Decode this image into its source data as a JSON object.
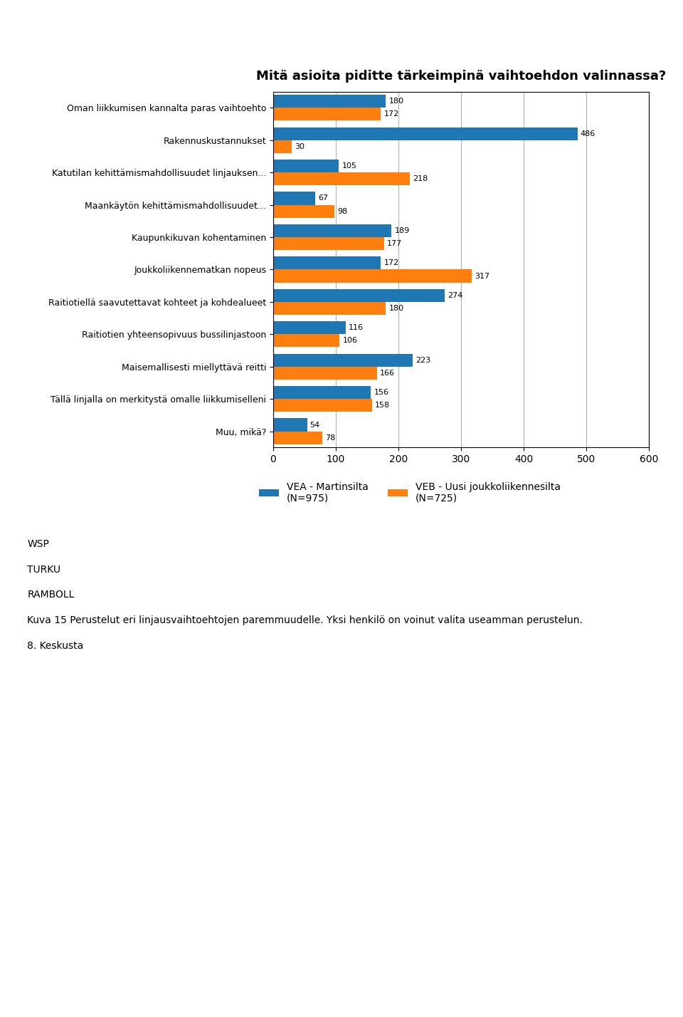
{
  "chart_data": {
    "type": "bar",
    "orientation": "horizontal",
    "title": "Mitä asioita piditte tärkeimpinä vaihtoehdon valinnassa?",
    "categories": [
      "Oman liikkumisen kannalta paras vaihtoehto",
      "Rakennuskustannukset",
      "Katutilan kehittämismahdollisuudet linjauksen...",
      "Maankäytön kehittämismahdollisuudet...",
      "Kaupunkikuvan kohentaminen",
      "Joukkoliikennematkan nopeus",
      "Raitiotiellä saavutettavat kohteet ja kohdealueet",
      "Raitiotien yhteensopivuus bussilinjastoon",
      "Maisemallisesti miellyttävä reitti",
      "Tällä linjalla on merkitystä omalle liikkumiselleni",
      "Muu, mikä?"
    ],
    "series": [
      {
        "name": "VEA - Martinsilta\n(N=975)",
        "values": [
          180,
          486,
          105,
          67,
          189,
          172,
          274,
          116,
          223,
          156,
          54
        ]
      },
      {
        "name": "VEB - Uusi joukkoliikennesilta\n(N=725)",
        "values": [
          172,
          30,
          218,
          98,
          177,
          317,
          180,
          106,
          166,
          158,
          78
        ]
      }
    ],
    "xlim": [
      0,
      600
    ],
    "xticks": [
      0,
      100,
      200,
      300,
      400,
      500,
      600
    ],
    "grid": true,
    "data_labels": true,
    "annotations": [
      "WSP",
      "TURKU",
      "RAMBOLL",
      "Kuva 15 Perustelut eri linjausvaihtoehtojen paremmuudelle. Yksi henkilö on voinut valita useamman perustelun.",
      "8. Keskusta"
    ]
  }
}
